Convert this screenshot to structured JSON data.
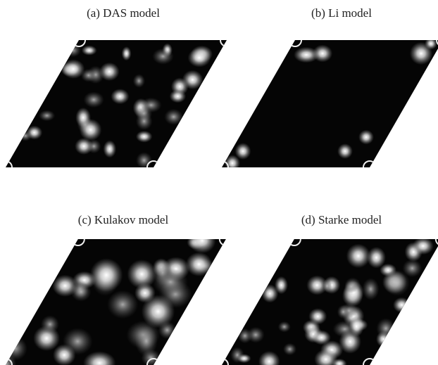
{
  "panels": [
    {
      "caption": "(a) DAS model"
    },
    {
      "caption": "(b) Li model"
    },
    {
      "caption": "(c) Kulakov model"
    },
    {
      "caption": "(d) Starke model"
    }
  ]
}
